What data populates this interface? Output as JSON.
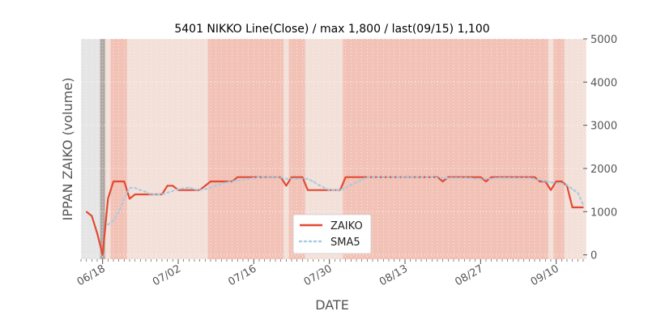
{
  "chart_data": {
    "type": "line",
    "title": "5401 NIKKO Line(Close) / max 1,800 / last(09/15) 1,100",
    "xlabel": "DATE",
    "ylabel": "IPPAN ZAIKO (volume)",
    "ylim": [
      -100,
      5000
    ],
    "yticks": [
      0,
      1000,
      2000,
      3000,
      4000,
      5000
    ],
    "ytick_labels": [
      "0",
      "1000",
      "2000",
      "3000",
      "4000",
      "5000"
    ],
    "y_axis_side": "right",
    "xlim": [
      "2018-06-14",
      "2018-09-15"
    ],
    "xticks": [
      "2018-06-18",
      "2018-07-02",
      "2018-07-16",
      "2018-07-30",
      "2018-08-13",
      "2018-08-27",
      "2018-09-10"
    ],
    "xtick_labels": [
      "06/18",
      "07/02",
      "07/16",
      "07/30",
      "08/13",
      "08/27",
      "09/10"
    ],
    "legend": {
      "placement": "lower center"
    },
    "colors": {
      "zaiko": "#e24a33",
      "sma5": "#a6cbe3",
      "grid": "#ffffff",
      "plot_bg": "#e5e5e5",
      "band_strong": "#f2c2b7",
      "band_light": "#f2e0d9",
      "marker": "#b0a8a4"
    },
    "series": [
      {
        "name": "ZAIKO",
        "style": "solid",
        "x": [
          "2018-06-15",
          "2018-06-16",
          "2018-06-17",
          "2018-06-18",
          "2018-06-19",
          "2018-06-20",
          "2018-06-21",
          "2018-06-22",
          "2018-06-23",
          "2018-06-24",
          "2018-06-25",
          "2018-06-26",
          "2018-06-27",
          "2018-06-28",
          "2018-06-29",
          "2018-06-30",
          "2018-07-01",
          "2018-07-02",
          "2018-07-03",
          "2018-07-04",
          "2018-07-05",
          "2018-07-06",
          "2018-07-07",
          "2018-07-08",
          "2018-07-09",
          "2018-07-10",
          "2018-07-11",
          "2018-07-12",
          "2018-07-13",
          "2018-07-14",
          "2018-07-15",
          "2018-07-16",
          "2018-07-17",
          "2018-07-18",
          "2018-07-19",
          "2018-07-20",
          "2018-07-21",
          "2018-07-22",
          "2018-07-23",
          "2018-07-24",
          "2018-07-25",
          "2018-07-26",
          "2018-07-27",
          "2018-07-28",
          "2018-07-29",
          "2018-07-30",
          "2018-07-31",
          "2018-08-01",
          "2018-08-02",
          "2018-08-03",
          "2018-08-04",
          "2018-08-05",
          "2018-08-06",
          "2018-08-07",
          "2018-08-08",
          "2018-08-09",
          "2018-08-10",
          "2018-08-11",
          "2018-08-12",
          "2018-08-13",
          "2018-08-14",
          "2018-08-15",
          "2018-08-16",
          "2018-08-17",
          "2018-08-18",
          "2018-08-19",
          "2018-08-20",
          "2018-08-21",
          "2018-08-22",
          "2018-08-23",
          "2018-08-24",
          "2018-08-25",
          "2018-08-26",
          "2018-08-27",
          "2018-08-28",
          "2018-08-29",
          "2018-08-30",
          "2018-08-31",
          "2018-09-01",
          "2018-09-02",
          "2018-09-03",
          "2018-09-04",
          "2018-09-05",
          "2018-09-06",
          "2018-09-07",
          "2018-09-08",
          "2018-09-09",
          "2018-09-10",
          "2018-09-11",
          "2018-09-12",
          "2018-09-13",
          "2018-09-14",
          "2018-09-15"
        ],
        "values": [
          1000,
          900,
          500,
          0,
          1300,
          1700,
          1700,
          1700,
          1300,
          1400,
          1400,
          1400,
          1400,
          1400,
          1400,
          1600,
          1600,
          1500,
          1500,
          1500,
          1500,
          1500,
          1600,
          1700,
          1700,
          1700,
          1700,
          1700,
          1800,
          1800,
          1800,
          1800,
          1800,
          1800,
          1800,
          1800,
          1800,
          1600,
          1800,
          1800,
          1800,
          1500,
          1500,
          1500,
          1500,
          1500,
          1500,
          1500,
          1800,
          1800,
          1800,
          1800,
          1800,
          1800,
          1800,
          1800,
          1800,
          1800,
          1800,
          1800,
          1800,
          1800,
          1800,
          1800,
          1800,
          1800,
          1700,
          1800,
          1800,
          1800,
          1800,
          1800,
          1800,
          1800,
          1700,
          1800,
          1800,
          1800,
          1800,
          1800,
          1800,
          1800,
          1800,
          1800,
          1700,
          1700,
          1500,
          1700,
          1700,
          1600,
          1100,
          1100,
          1100
        ]
      },
      {
        "name": "SMA5",
        "style": "dotted",
        "x": [
          "2018-06-19",
          "2018-06-20",
          "2018-06-21",
          "2018-06-22",
          "2018-06-23",
          "2018-06-24",
          "2018-06-25",
          "2018-06-26",
          "2018-06-27",
          "2018-06-28",
          "2018-06-29",
          "2018-06-30",
          "2018-07-01",
          "2018-07-02",
          "2018-07-03",
          "2018-07-04",
          "2018-07-05",
          "2018-07-06",
          "2018-07-07",
          "2018-07-08",
          "2018-07-09",
          "2018-07-10",
          "2018-07-11",
          "2018-07-12",
          "2018-07-13",
          "2018-07-14",
          "2018-07-15",
          "2018-07-16",
          "2018-07-17",
          "2018-07-18",
          "2018-07-19",
          "2018-07-20",
          "2018-07-21",
          "2018-07-22",
          "2018-07-23",
          "2018-07-24",
          "2018-07-25",
          "2018-07-26",
          "2018-07-27",
          "2018-07-28",
          "2018-07-29",
          "2018-07-30",
          "2018-07-31",
          "2018-08-01",
          "2018-08-02",
          "2018-08-03",
          "2018-08-04",
          "2018-08-05",
          "2018-08-06",
          "2018-08-07",
          "2018-08-08",
          "2018-08-09",
          "2018-08-10",
          "2018-08-11",
          "2018-08-12",
          "2018-08-13",
          "2018-08-14",
          "2018-08-15",
          "2018-08-16",
          "2018-08-17",
          "2018-08-18",
          "2018-08-19",
          "2018-08-20",
          "2018-08-21",
          "2018-08-22",
          "2018-08-23",
          "2018-08-24",
          "2018-08-25",
          "2018-08-26",
          "2018-08-27",
          "2018-08-28",
          "2018-08-29",
          "2018-08-30",
          "2018-08-31",
          "2018-09-01",
          "2018-09-02",
          "2018-09-03",
          "2018-09-04",
          "2018-09-05",
          "2018-09-06",
          "2018-09-07",
          "2018-09-08",
          "2018-09-09",
          "2018-09-10",
          "2018-09-11",
          "2018-09-12",
          "2018-09-13",
          "2018-09-14",
          "2018-09-15"
        ],
        "values": [
          700,
          800,
          1000,
          1300,
          1550,
          1550,
          1500,
          1460,
          1400,
          1400,
          1400,
          1440,
          1480,
          1520,
          1540,
          1560,
          1520,
          1500,
          1520,
          1560,
          1600,
          1640,
          1680,
          1700,
          1720,
          1740,
          1760,
          1780,
          1800,
          1800,
          1800,
          1800,
          1800,
          1760,
          1760,
          1760,
          1760,
          1760,
          1700,
          1620,
          1560,
          1500,
          1500,
          1500,
          1560,
          1620,
          1680,
          1740,
          1800,
          1800,
          1800,
          1800,
          1800,
          1800,
          1800,
          1800,
          1800,
          1800,
          1800,
          1800,
          1800,
          1780,
          1780,
          1780,
          1780,
          1780,
          1780,
          1780,
          1760,
          1760,
          1760,
          1760,
          1780,
          1780,
          1780,
          1780,
          1780,
          1780,
          1780,
          1760,
          1740,
          1700,
          1680,
          1660,
          1650,
          1620,
          1520,
          1440,
          1160
        ]
      }
    ]
  }
}
